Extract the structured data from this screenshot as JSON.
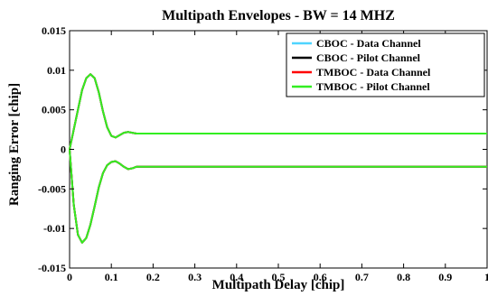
{
  "chart_data": {
    "type": "line",
    "title": "Multipath Envelopes - BW = 14 MHZ",
    "xlabel": "Multipath Delay [chip]",
    "ylabel": "Ranging Error [chip]",
    "xlim": [
      0,
      1
    ],
    "ylim": [
      -0.015,
      0.015
    ],
    "xticks": [
      "0",
      "0.1",
      "0.2",
      "0.3",
      "0.4",
      "0.5",
      "0.6",
      "0.7",
      "0.8",
      "0.9",
      "1"
    ],
    "yticks": [
      "0.015",
      "0.01",
      "0.005",
      "0",
      "-0.005",
      "-0.01",
      "-0.015"
    ],
    "grid": false,
    "legend_position": "top-right",
    "x": [
      0,
      0.01,
      0.02,
      0.03,
      0.04,
      0.05,
      0.06,
      0.07,
      0.08,
      0.09,
      0.1,
      0.11,
      0.12,
      0.13,
      0.14,
      0.15,
      0.16,
      0.18,
      0.2,
      0.25,
      0.3,
      0.35,
      0.4,
      0.45,
      0.5,
      0.55,
      0.6,
      0.65,
      0.7,
      0.75,
      0.8,
      0.85,
      0.9,
      0.95,
      1
    ],
    "series": [
      {
        "name": "CBOC - Data Channel",
        "color": "#4fd4ff",
        "upper": [
          0,
          0.0025,
          0.005,
          0.0075,
          0.009,
          0.0095,
          0.009,
          0.0072,
          0.0048,
          0.0028,
          0.0017,
          0.0015,
          0.0018,
          0.0021,
          0.0022,
          0.0021,
          0.002,
          0.002,
          0.002,
          0.002,
          0.002,
          0.002,
          0.002,
          0.002,
          0.002,
          0.002,
          0.002,
          0.002,
          0.002,
          0.002,
          0.002,
          0.002,
          0.002,
          0.002,
          0.002
        ],
        "lower": [
          0,
          -0.007,
          -0.0108,
          -0.0118,
          -0.0112,
          -0.0095,
          -0.0072,
          -0.0048,
          -0.003,
          -0.002,
          -0.0016,
          -0.0015,
          -0.0018,
          -0.0022,
          -0.0025,
          -0.0024,
          -0.0022,
          -0.0022,
          -0.0022,
          -0.0022,
          -0.0022,
          -0.0022,
          -0.0022,
          -0.0022,
          -0.0022,
          -0.0022,
          -0.0022,
          -0.0022,
          -0.0022,
          -0.0022,
          -0.0022,
          -0.0022,
          -0.0022,
          -0.0022,
          -0.0022
        ]
      },
      {
        "name": "CBOC - Pilot Channel",
        "color": "#000000",
        "upper": [
          0,
          0.0025,
          0.005,
          0.0075,
          0.009,
          0.0095,
          0.009,
          0.0072,
          0.0048,
          0.0028,
          0.0017,
          0.0015,
          0.0018,
          0.0021,
          0.0022,
          0.0021,
          0.002,
          0.002,
          0.002,
          0.002,
          0.002,
          0.002,
          0.002,
          0.002,
          0.002,
          0.002,
          0.002,
          0.002,
          0.002,
          0.002,
          0.002,
          0.002,
          0.002,
          0.002,
          0.002
        ],
        "lower": [
          0,
          -0.007,
          -0.0108,
          -0.0118,
          -0.0112,
          -0.0095,
          -0.0072,
          -0.0048,
          -0.003,
          -0.002,
          -0.0016,
          -0.0015,
          -0.0018,
          -0.0022,
          -0.0025,
          -0.0024,
          -0.0022,
          -0.0022,
          -0.0022,
          -0.0022,
          -0.0022,
          -0.0022,
          -0.0022,
          -0.0022,
          -0.0022,
          -0.0022,
          -0.0022,
          -0.0022,
          -0.0022,
          -0.0022,
          -0.0022,
          -0.0022,
          -0.0022,
          -0.0022,
          -0.0022
        ]
      },
      {
        "name": "TMBOC - Data Channel",
        "color": "#ff0000",
        "upper": [
          0,
          0.0025,
          0.005,
          0.0075,
          0.009,
          0.0095,
          0.009,
          0.0072,
          0.0048,
          0.0028,
          0.0017,
          0.0015,
          0.0018,
          0.0021,
          0.0022,
          0.0021,
          0.002,
          0.002,
          0.002,
          0.002,
          0.002,
          0.002,
          0.002,
          0.002,
          0.002,
          0.002,
          0.002,
          0.002,
          0.002,
          0.002,
          0.002,
          0.002,
          0.002,
          0.002,
          0.002
        ],
        "lower": [
          0,
          -0.007,
          -0.0108,
          -0.0118,
          -0.0112,
          -0.0095,
          -0.0072,
          -0.0048,
          -0.003,
          -0.002,
          -0.0016,
          -0.0015,
          -0.0018,
          -0.0022,
          -0.0025,
          -0.0024,
          -0.0022,
          -0.0022,
          -0.0022,
          -0.0022,
          -0.0022,
          -0.0022,
          -0.0022,
          -0.0022,
          -0.0022,
          -0.0022,
          -0.0022,
          -0.0022,
          -0.0022,
          -0.0022,
          -0.0022,
          -0.0022,
          -0.0022,
          -0.0022,
          -0.0022
        ]
      },
      {
        "name": "TMBOC - Pilot Channel",
        "color": "#33ee22",
        "upper": [
          0,
          0.0025,
          0.005,
          0.0075,
          0.009,
          0.0095,
          0.009,
          0.0072,
          0.0048,
          0.0028,
          0.0017,
          0.0015,
          0.0018,
          0.0021,
          0.0022,
          0.0021,
          0.002,
          0.002,
          0.002,
          0.002,
          0.002,
          0.002,
          0.002,
          0.002,
          0.002,
          0.002,
          0.002,
          0.002,
          0.002,
          0.002,
          0.002,
          0.002,
          0.002,
          0.002,
          0.002
        ],
        "lower": [
          0,
          -0.007,
          -0.0108,
          -0.0118,
          -0.0112,
          -0.0095,
          -0.0072,
          -0.0048,
          -0.003,
          -0.002,
          -0.0016,
          -0.0015,
          -0.0018,
          -0.0022,
          -0.0025,
          -0.0024,
          -0.0022,
          -0.0022,
          -0.0022,
          -0.0022,
          -0.0022,
          -0.0022,
          -0.0022,
          -0.0022,
          -0.0022,
          -0.0022,
          -0.0022,
          -0.0022,
          -0.0022,
          -0.0022,
          -0.0022,
          -0.0022,
          -0.0022,
          -0.0022,
          -0.0022
        ]
      }
    ]
  }
}
